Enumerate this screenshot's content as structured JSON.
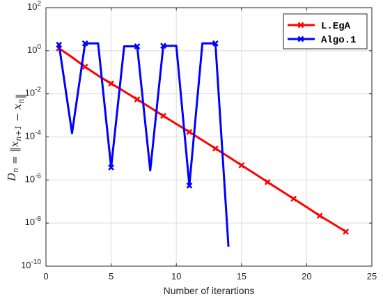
{
  "chart_data": {
    "type": "line",
    "xlabel": "Number of iterartions",
    "ylabel": "D_n = ‖x_{n+1} − x_n‖",
    "xlim": [
      0,
      25
    ],
    "ylim": [
      1e-10,
      100
    ],
    "yscale": "log",
    "grid": true,
    "legend_position": "top-right",
    "xticks": [
      "0",
      "5",
      "10",
      "15",
      "20",
      "25"
    ],
    "yticks": [
      {
        "base": "10",
        "exp": "-10"
      },
      {
        "base": "10",
        "exp": "-8"
      },
      {
        "base": "10",
        "exp": "-6"
      },
      {
        "base": "10",
        "exp": "-4"
      },
      {
        "base": "10",
        "exp": "-2"
      },
      {
        "base": "10",
        "exp": "0"
      },
      {
        "base": "10",
        "exp": "2"
      }
    ],
    "series": [
      {
        "name": "L.EgA",
        "color": "#ff0000",
        "marker": "x",
        "x": [
          1,
          2,
          3,
          4,
          5,
          6,
          7,
          8,
          9,
          10,
          11,
          12,
          13,
          14,
          15,
          16,
          17,
          18,
          19,
          20,
          21,
          22,
          23
        ],
        "y": [
          1.3,
          0.5,
          0.18,
          0.07,
          0.03,
          0.013,
          0.0055,
          0.0023,
          0.00095,
          0.0004,
          0.00017,
          7e-05,
          2.9e-05,
          1.2e-05,
          4.8e-06,
          2e-06,
          8e-07,
          3.3e-07,
          1.35e-07,
          5.5e-08,
          2.2e-08,
          9.5e-09,
          4e-09
        ],
        "marker_x": [
          1,
          3,
          5,
          7,
          9,
          11,
          13,
          15,
          17,
          19,
          21,
          23
        ]
      },
      {
        "name": "Algo.1",
        "color": "#0000ff",
        "marker": "x",
        "x": [
          1,
          2,
          3,
          4,
          5,
          6,
          7,
          8,
          9,
          10,
          11,
          12,
          13,
          14
        ],
        "y": [
          1.9,
          0.00015,
          2.2,
          2.2,
          3.8e-06,
          1.6,
          1.6,
          2.8e-06,
          1.7,
          1.7,
          5.5e-07,
          2.2,
          2.2,
          8e-10
        ],
        "marker_x": [
          1,
          3,
          5,
          7,
          9,
          11,
          13
        ]
      }
    ]
  }
}
